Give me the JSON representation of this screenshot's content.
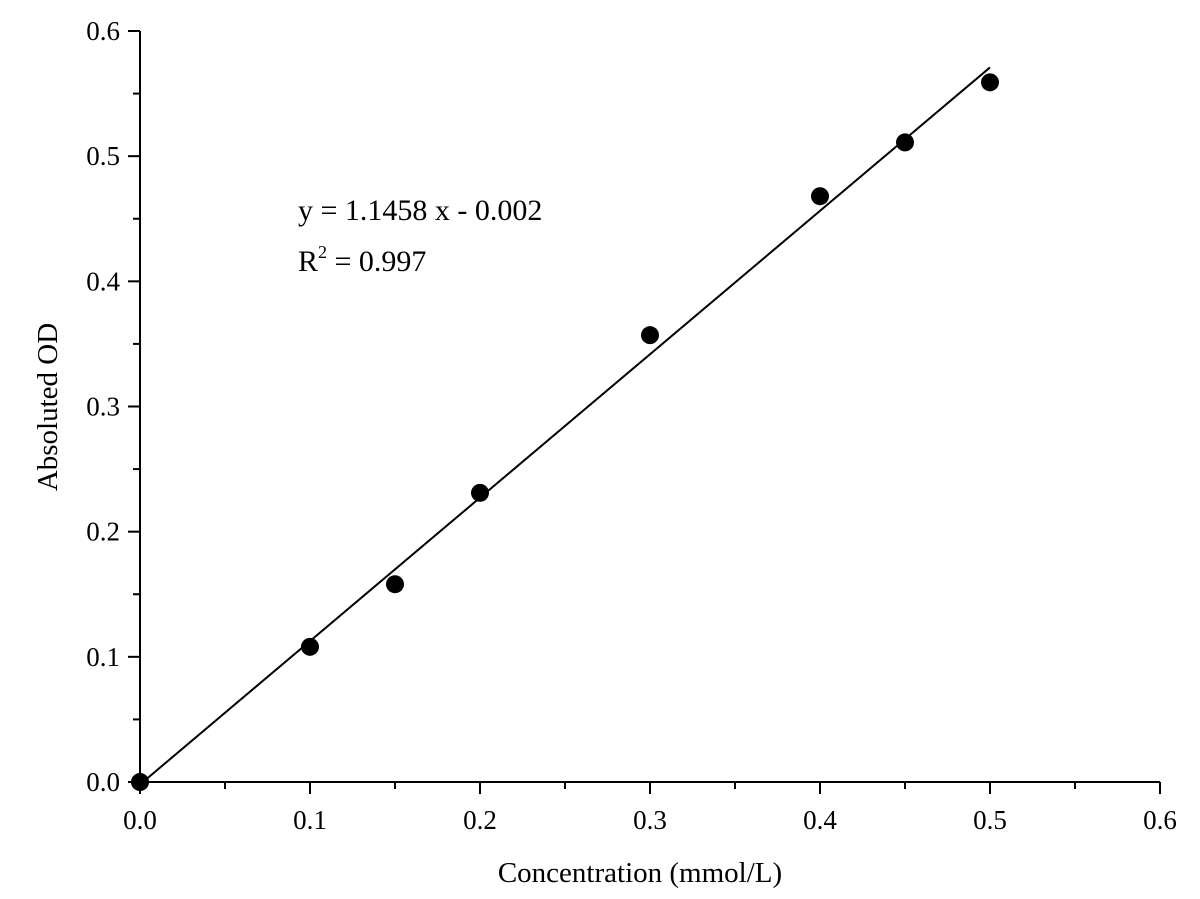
{
  "chart_data": {
    "type": "scatter",
    "title": "",
    "xlabel": "Concentration (mmol/L)",
    "ylabel": "Absoluted OD",
    "xlim": [
      0.0,
      0.6
    ],
    "ylim": [
      0.0,
      0.6
    ],
    "xticks": [
      "0.0",
      "0.1",
      "0.2",
      "0.3",
      "0.4",
      "0.5",
      "0.6"
    ],
    "yticks": [
      "0.0",
      "0.1",
      "0.2",
      "0.3",
      "0.4",
      "0.5",
      "0.6"
    ],
    "grid": false,
    "series": [
      {
        "x": [
          0.0,
          0.1,
          0.15,
          0.2,
          0.3,
          0.4,
          0.45,
          0.5
        ],
        "y": [
          0.0,
          0.108,
          0.158,
          0.231,
          0.357,
          0.468,
          0.511,
          0.559
        ],
        "color": "#000000"
      }
    ],
    "fit": {
      "slope": 1.1458,
      "intercept": -0.002,
      "x_range": [
        0.0,
        0.5
      ]
    },
    "annotations": {
      "equation": "y = 1.1458 x - 0.002",
      "r2_prefix": "R",
      "r2_sup": "2",
      "r2_value": " = 0.997"
    }
  }
}
